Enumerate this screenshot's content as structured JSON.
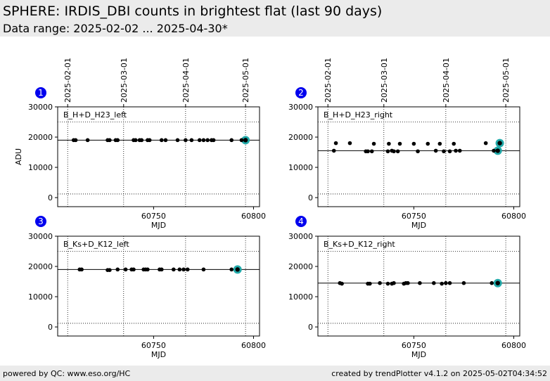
{
  "header": {
    "title": "SPHERE: IRDIS_DBI counts in brightest flat (last 90 days)",
    "subtitle": "Data range: 2025-02-02 ... 2025-04-30*"
  },
  "footer": {
    "left": "powered by QC: www.eso.org/HC",
    "right": "created by trendPlotter v4.1.2 on 2025-05-02T04:34:52"
  },
  "colors": {
    "point": "#000000",
    "highlight": "#22aaaa",
    "badge": "#0000ee"
  },
  "chart_data": [
    {
      "type": "scatter",
      "panel_number": "1",
      "label": "B_H+D_H23_left",
      "xlabel": "MJD",
      "ylabel": "ADU",
      "xlim": [
        60702,
        60803
      ],
      "ylim": [
        -3000,
        30000
      ],
      "yticks": [
        0,
        10000,
        20000,
        30000
      ],
      "xticks": [
        60750,
        60800
      ],
      "top_date_ticks": [
        {
          "label": "2025-02-01",
          "mjd": 60707
        },
        {
          "label": "2025-03-01",
          "mjd": 60735
        },
        {
          "label": "2025-04-01",
          "mjd": 60766
        },
        {
          "label": "2025-05-01",
          "mjd": 60796
        }
      ],
      "ref_line": 19000,
      "hlines_dotted": [
        25000,
        1200
      ],
      "grid_vertical_dotted": true,
      "points": [
        {
          "x": 60710,
          "y": 19000
        },
        {
          "x": 60711,
          "y": 19000
        },
        {
          "x": 60717,
          "y": 19000
        },
        {
          "x": 60727,
          "y": 19000
        },
        {
          "x": 60728,
          "y": 19000
        },
        {
          "x": 60731,
          "y": 19000
        },
        {
          "x": 60732,
          "y": 19000
        },
        {
          "x": 60740,
          "y": 19000
        },
        {
          "x": 60741,
          "y": 19000
        },
        {
          "x": 60743,
          "y": 19000
        },
        {
          "x": 60744,
          "y": 19000
        },
        {
          "x": 60747,
          "y": 19000
        },
        {
          "x": 60748,
          "y": 19000
        },
        {
          "x": 60754,
          "y": 19000
        },
        {
          "x": 60756,
          "y": 19000
        },
        {
          "x": 60762,
          "y": 19000
        },
        {
          "x": 60766,
          "y": 19000
        },
        {
          "x": 60769,
          "y": 19000
        },
        {
          "x": 60773,
          "y": 19000
        },
        {
          "x": 60775,
          "y": 19000
        },
        {
          "x": 60777,
          "y": 19000
        },
        {
          "x": 60779,
          "y": 19000
        },
        {
          "x": 60780,
          "y": 19000
        },
        {
          "x": 60789,
          "y": 19000
        },
        {
          "x": 60794,
          "y": 19000
        }
      ],
      "highlight": [
        {
          "x": 60796,
          "y": 19000
        }
      ]
    },
    {
      "type": "scatter",
      "panel_number": "2",
      "label": "B_H+D_H23_right",
      "xlabel": "MJD",
      "ylabel": "",
      "xlim": [
        60702,
        60803
      ],
      "ylim": [
        -3000,
        30000
      ],
      "yticks": [
        0,
        10000,
        20000,
        30000
      ],
      "xticks": [
        60750,
        60800
      ],
      "top_date_ticks": [
        {
          "label": "2025-02-01",
          "mjd": 60707
        },
        {
          "label": "2025-03-01",
          "mjd": 60735
        },
        {
          "label": "2025-04-01",
          "mjd": 60766
        },
        {
          "label": "2025-05-01",
          "mjd": 60796
        }
      ],
      "ref_line": 15500,
      "hlines_dotted": [
        25000,
        1200
      ],
      "grid_vertical_dotted": true,
      "points": [
        {
          "x": 60710,
          "y": 15500
        },
        {
          "x": 60711,
          "y": 18000
        },
        {
          "x": 60718,
          "y": 18000
        },
        {
          "x": 60726,
          "y": 15300
        },
        {
          "x": 60727,
          "y": 15300
        },
        {
          "x": 60729,
          "y": 15300
        },
        {
          "x": 60730,
          "y": 17800
        },
        {
          "x": 60737,
          "y": 15300
        },
        {
          "x": 60737.5,
          "y": 17800
        },
        {
          "x": 60739,
          "y": 15500
        },
        {
          "x": 60740,
          "y": 15300
        },
        {
          "x": 60742,
          "y": 15300
        },
        {
          "x": 60743,
          "y": 17800
        },
        {
          "x": 60750,
          "y": 17800
        },
        {
          "x": 60752,
          "y": 15300
        },
        {
          "x": 60757,
          "y": 17800
        },
        {
          "x": 60761,
          "y": 15500
        },
        {
          "x": 60763,
          "y": 17800
        },
        {
          "x": 60765,
          "y": 15300
        },
        {
          "x": 60768,
          "y": 15300
        },
        {
          "x": 60770,
          "y": 17800
        },
        {
          "x": 60771,
          "y": 15500
        },
        {
          "x": 60773,
          "y": 15500
        },
        {
          "x": 60786,
          "y": 18000
        },
        {
          "x": 60790,
          "y": 15500
        }
      ],
      "highlight": [
        {
          "x": 60792,
          "y": 15500
        },
        {
          "x": 60793,
          "y": 18000
        }
      ]
    },
    {
      "type": "scatter",
      "panel_number": "3",
      "label": "B_Ks+D_K12_left",
      "xlabel": "MJD",
      "ylabel": "",
      "xlim": [
        60702,
        60803
      ],
      "ylim": [
        -3000,
        30000
      ],
      "yticks": [
        0,
        10000,
        20000,
        30000
      ],
      "xticks": [
        60750,
        60800
      ],
      "top_date_ticks": [],
      "ref_line": 19000,
      "hlines_dotted": [
        25000,
        1200
      ],
      "grid_vertical_dotted": true,
      "points": [
        {
          "x": 60713,
          "y": 19000
        },
        {
          "x": 60714,
          "y": 19000
        },
        {
          "x": 60727,
          "y": 18800
        },
        {
          "x": 60728,
          "y": 18800
        },
        {
          "x": 60732,
          "y": 19000
        },
        {
          "x": 60736,
          "y": 19000
        },
        {
          "x": 60739,
          "y": 19000
        },
        {
          "x": 60740,
          "y": 19000
        },
        {
          "x": 60745,
          "y": 19000
        },
        {
          "x": 60746,
          "y": 19000
        },
        {
          "x": 60747,
          "y": 19000
        },
        {
          "x": 60753,
          "y": 19000
        },
        {
          "x": 60754,
          "y": 19000
        },
        {
          "x": 60760,
          "y": 19000
        },
        {
          "x": 60763,
          "y": 19000
        },
        {
          "x": 60765,
          "y": 19000
        },
        {
          "x": 60767,
          "y": 19000
        },
        {
          "x": 60775,
          "y": 19000
        },
        {
          "x": 60789,
          "y": 19000
        }
      ],
      "highlight": [
        {
          "x": 60792,
          "y": 19000
        }
      ]
    },
    {
      "type": "scatter",
      "panel_number": "4",
      "label": "B_Ks+D_K12_right",
      "xlabel": "MJD",
      "ylabel": "",
      "xlim": [
        60702,
        60803
      ],
      "ylim": [
        -3000,
        30000
      ],
      "yticks": [
        0,
        10000,
        20000,
        30000
      ],
      "xticks": [
        60750,
        60800
      ],
      "top_date_ticks": [],
      "ref_line": 14500,
      "hlines_dotted": [
        25000,
        1200
      ],
      "grid_vertical_dotted": true,
      "points": [
        {
          "x": 60713,
          "y": 14500
        },
        {
          "x": 60714,
          "y": 14300
        },
        {
          "x": 60727,
          "y": 14300
        },
        {
          "x": 60728,
          "y": 14300
        },
        {
          "x": 60733,
          "y": 14500
        },
        {
          "x": 60737,
          "y": 14300
        },
        {
          "x": 60739,
          "y": 14300
        },
        {
          "x": 60740,
          "y": 14500
        },
        {
          "x": 60745,
          "y": 14300
        },
        {
          "x": 60746,
          "y": 14500
        },
        {
          "x": 60747,
          "y": 14500
        },
        {
          "x": 60753,
          "y": 14500
        },
        {
          "x": 60760,
          "y": 14500
        },
        {
          "x": 60764,
          "y": 14300
        },
        {
          "x": 60766,
          "y": 14500
        },
        {
          "x": 60768,
          "y": 14500
        },
        {
          "x": 60775,
          "y": 14500
        },
        {
          "x": 60789,
          "y": 14500
        }
      ],
      "highlight": [
        {
          "x": 60792,
          "y": 14500
        }
      ]
    }
  ]
}
